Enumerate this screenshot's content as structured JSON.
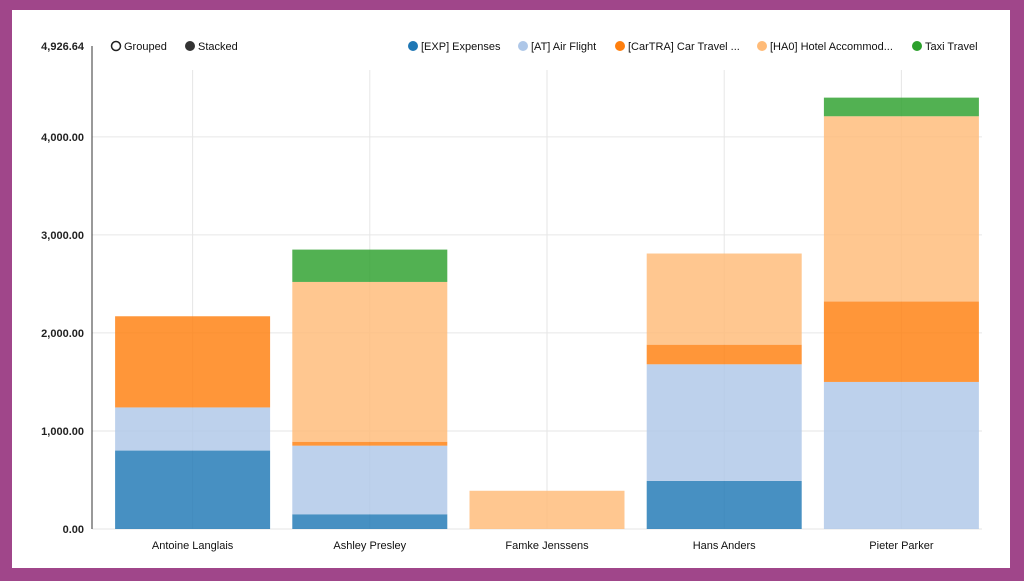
{
  "chart_data": {
    "type": "bar",
    "mode": "stacked",
    "controls": [
      "Grouped",
      "Stacked"
    ],
    "selected_control": "Stacked",
    "categories": [
      "Antoine Langlais",
      "Ashley Presley",
      "Famke Jenssens",
      "Hans Anders",
      "Pieter Parker"
    ],
    "series": [
      {
        "name": "[EXP] Expenses",
        "color": "#1f77b4",
        "values": [
          800,
          150,
          0,
          490,
          0
        ]
      },
      {
        "name": "[AT] Air Flight",
        "color": "#aec7e8",
        "values": [
          440,
          700,
          0,
          1190,
          1500
        ]
      },
      {
        "name": "[CarTRA] Car Travel ...",
        "color": "#ff7f0e",
        "values": [
          930,
          40,
          0,
          200,
          820
        ]
      },
      {
        "name": "[HA0] Hotel Accommod...",
        "color": "#ffbb78",
        "values": [
          0,
          1630,
          390,
          930,
          1890
        ]
      },
      {
        "name": "Taxi Travel",
        "color": "#2ca02c",
        "values": [
          0,
          330,
          0,
          0,
          190
        ]
      }
    ],
    "ylim": [
      0,
      4926.64
    ],
    "y_ticks": [
      "0.00",
      "1,000.00",
      "2,000.00",
      "3,000.00",
      "4,000.00"
    ],
    "y_max_label": "4,926.64",
    "grid": true,
    "legend_position": "top-right"
  }
}
